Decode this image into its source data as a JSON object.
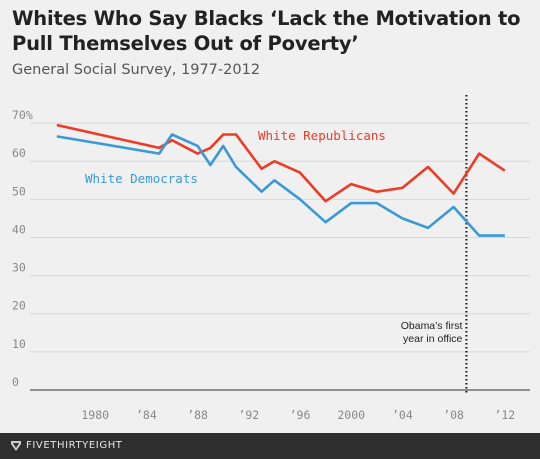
{
  "chart_data": {
    "type": "line",
    "title": "Whites Who Say Blacks ‘Lack the Motivation to Pull Themselves Out of Poverty’",
    "subtitle": "General Social Survey, 1977-2012",
    "xlabel": "",
    "ylabel": "",
    "xlim": [
      1974.5,
      2014
    ],
    "ylim": [
      0,
      75
    ],
    "y_ticks": [
      0,
      10,
      20,
      30,
      40,
      50,
      60,
      70
    ],
    "y_tick_labels": [
      "0",
      "10",
      "20",
      "30",
      "40",
      "50",
      "60",
      "70%"
    ],
    "x_ticks": [
      1980,
      1984,
      1988,
      1992,
      1996,
      2000,
      2004,
      2008,
      2012
    ],
    "x_tick_labels": [
      "1980",
      "’84",
      "’88",
      "’92",
      "’96",
      "2000",
      "’04",
      "’08",
      "’12"
    ],
    "grid": "horizontal",
    "series": [
      {
        "name": "White Republicans",
        "color": "#ed3b25",
        "x": [
          1977,
          1985,
          1986,
          1988,
          1989,
          1990,
          1991,
          1993,
          1994,
          1996,
          1998,
          2000,
          2002,
          2004,
          2006,
          2008,
          2010,
          2012
        ],
        "y": [
          69.5,
          63.5,
          65.5,
          62,
          63.5,
          67,
          67,
          58,
          60,
          57,
          49.5,
          54,
          52,
          53,
          58.5,
          51.5,
          62,
          57.5
        ]
      },
      {
        "name": "White Democrats",
        "color": "#3a9ad8",
        "x": [
          1977,
          1985,
          1986,
          1988,
          1989,
          1990,
          1991,
          1993,
          1994,
          1996,
          1998,
          2000,
          2002,
          2004,
          2006,
          2008,
          2010,
          2012
        ],
        "y": [
          66.5,
          62,
          67,
          64,
          59,
          64,
          58.5,
          52,
          55,
          50,
          44,
          49,
          49,
          45,
          42.5,
          48,
          40.5,
          40.5
        ]
      }
    ],
    "annotations": [
      {
        "text_lines": [
          "Obama’s first",
          "year in office"
        ],
        "x": 2009
      }
    ]
  },
  "footer": {
    "brand": "FIVETHIRTYEIGHT"
  }
}
